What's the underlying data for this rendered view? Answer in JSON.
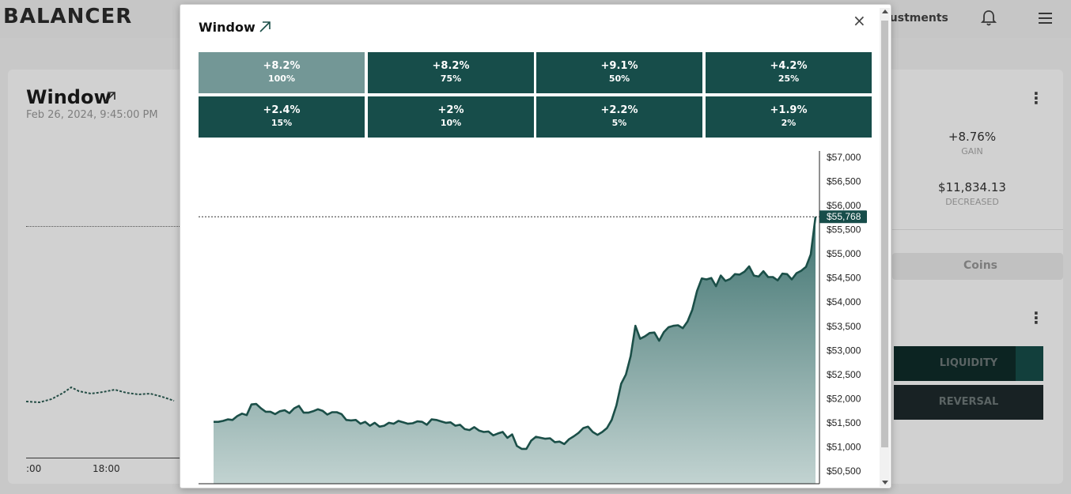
{
  "app": {
    "logo": "BALANCER",
    "nav_partial": "justments"
  },
  "background_card": {
    "title": "Window",
    "date": "Feb 26, 2024, 9:45:00 PM",
    "x_labels": [
      ":00",
      "18:00"
    ],
    "stats": [
      {
        "value": "+8.76%",
        "label": "GAIN"
      },
      {
        "value": "$11,834.13",
        "label": "DECREASED"
      }
    ],
    "tab_label": "Coins",
    "buttons": [
      "LIQUIDITY",
      "REVERSAL"
    ]
  },
  "modal": {
    "title": "Window",
    "close_symbol": "×",
    "tiles": [
      {
        "pct": "+8.2%",
        "window": "100%",
        "active": true
      },
      {
        "pct": "+8.2%",
        "window": "75%",
        "active": false
      },
      {
        "pct": "+9.1%",
        "window": "50%",
        "active": false
      },
      {
        "pct": "+4.2%",
        "window": "25%",
        "active": false
      },
      {
        "pct": "+2.4%",
        "window": "15%",
        "active": false
      },
      {
        "pct": "+2%",
        "window": "10%",
        "active": false
      },
      {
        "pct": "+2.2%",
        "window": "5%",
        "active": false
      },
      {
        "pct": "+1.9%",
        "window": "2%",
        "active": false
      }
    ]
  },
  "colors": {
    "accent_dark": "#174d4a",
    "accent_active": "#739796",
    "line": "#1b4f48"
  },
  "icons": [
    "arrow-up-right-icon",
    "close-icon",
    "bell-icon",
    "menu-icon",
    "more-vert-icon"
  ],
  "chart_data": {
    "type": "area",
    "ylim": [
      50350,
      57200
    ],
    "y_ticks": [
      57000,
      56500,
      56000,
      55500,
      55000,
      54500,
      54000,
      53500,
      53000,
      52500,
      52000,
      51500,
      51000,
      50500
    ],
    "y_tick_labels": [
      "$57,000",
      "$56,500",
      "$56,000",
      "$55,500",
      "$55,000",
      "$54,500",
      "$54,000",
      "$53,500",
      "$53,000",
      "$52,500",
      "$52,000",
      "$51,500",
      "$51,000",
      "$50,500"
    ],
    "current_price": 55768,
    "current_label": "$55,768",
    "values": [
      51520,
      51520,
      51540,
      51570,
      51560,
      51640,
      51690,
      51660,
      51880,
      51890,
      51800,
      51730,
      51730,
      51680,
      51740,
      51760,
      51700,
      51800,
      51850,
      51710,
      51710,
      51740,
      51780,
      51750,
      51670,
      51720,
      51720,
      51680,
      51560,
      51550,
      51560,
      51480,
      51520,
      51440,
      51500,
      51420,
      51440,
      51500,
      51480,
      51540,
      51510,
      51480,
      51490,
      51530,
      51520,
      51460,
      51570,
      51560,
      51530,
      51500,
      51510,
      51440,
      51460,
      51370,
      51350,
      51410,
      51340,
      51310,
      51320,
      51240,
      51280,
      51310,
      51190,
      51260,
      51020,
      50960,
      50960,
      51130,
      51210,
      51190,
      51170,
      51180,
      51100,
      51110,
      51060,
      51160,
      51220,
      51290,
      51390,
      51420,
      51310,
      51250,
      51310,
      51390,
      51560,
      51860,
      52310,
      52500,
      52880,
      53510,
      53240,
      53290,
      53360,
      53370,
      53200,
      53380,
      53480,
      53510,
      53520,
      53460,
      53600,
      53840,
      54230,
      54490,
      54470,
      54500,
      54330,
      54550,
      54440,
      54480,
      54580,
      54570,
      54630,
      54740,
      54550,
      54530,
      54640,
      54520,
      54520,
      54450,
      54590,
      54580,
      54470,
      54600,
      54650,
      54730,
      54990,
      55768
    ]
  }
}
